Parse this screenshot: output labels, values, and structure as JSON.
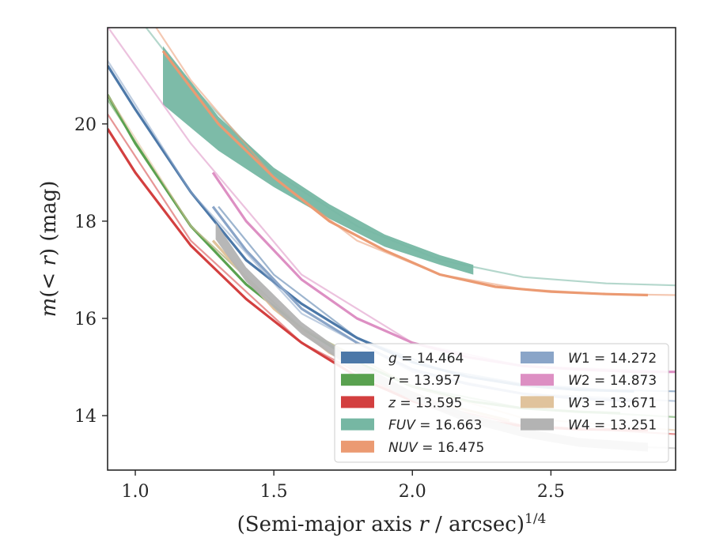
{
  "chart_data": {
    "type": "line",
    "xlabel": "(Semi-major axis r / arcsec)^1/4",
    "ylabel": "m(< r) (mag)",
    "xlim": [
      0.9,
      2.95
    ],
    "ylim": [
      21.98,
      12.88
    ],
    "y_inverted": true,
    "x_ticks": [
      1.0,
      1.5,
      2.0,
      2.5
    ],
    "x_tick_labels": [
      "1.0",
      "1.5",
      "2.0",
      "2.5"
    ],
    "y_ticks": [
      14,
      16,
      18,
      20
    ],
    "y_tick_labels": [
      "14",
      "16",
      "18",
      "20"
    ],
    "legend_position": "lower-right",
    "legend_columns": 2,
    "grid": false,
    "series": [
      {
        "name": "g",
        "label": "g = 14.464",
        "mag": 14.464,
        "color": "#4c78a8",
        "band": {
          "x": [
            0.9,
            1.0,
            1.2,
            1.4,
            1.6,
            1.8,
            2.0,
            2.2,
            2.4,
            2.6,
            2.8
          ],
          "y": [
            21.2,
            20.3,
            18.6,
            17.2,
            16.3,
            15.6,
            15.1,
            14.8,
            14.62,
            14.53,
            14.5
          ]
        },
        "model": {
          "x": [
            1.3,
            1.5,
            1.8,
            2.1,
            2.4,
            2.7,
            2.95
          ],
          "y": [
            18.3,
            16.9,
            15.6,
            14.95,
            14.65,
            14.53,
            14.5
          ]
        }
      },
      {
        "name": "r",
        "label": "r = 13.957",
        "mag": 13.957,
        "color": "#59a14f",
        "band": {
          "x": [
            0.9,
            1.0,
            1.2,
            1.4,
            1.6,
            1.8,
            2.0,
            2.2,
            2.4,
            2.6,
            2.75
          ],
          "y": [
            20.6,
            19.6,
            17.9,
            16.7,
            15.8,
            15.1,
            14.6,
            14.3,
            14.15,
            14.08,
            14.05
          ]
        },
        "model": {
          "x": [
            0.9,
            1.2,
            1.6,
            2.0,
            2.4,
            2.95
          ],
          "y": [
            20.5,
            17.9,
            15.8,
            14.6,
            14.15,
            13.97
          ]
        }
      },
      {
        "name": "z",
        "label": "z = 13.595",
        "mag": 13.595,
        "color": "#d33f3f",
        "band": {
          "x": [
            0.9,
            1.0,
            1.2,
            1.4,
            1.6,
            1.8,
            2.0,
            2.2,
            2.4,
            2.6,
            2.85
          ],
          "y": [
            19.9,
            19.0,
            17.5,
            16.4,
            15.5,
            14.8,
            14.3,
            13.95,
            13.78,
            13.72,
            13.7
          ]
        },
        "model": {
          "x": [
            0.9,
            1.2,
            1.6,
            2.0,
            2.4,
            2.95
          ],
          "y": [
            20.2,
            17.6,
            15.5,
            14.3,
            13.8,
            13.62
          ]
        }
      },
      {
        "name": "FUV",
        "label": "FUV = 16.663",
        "mag": 16.663,
        "color": "#76b7a3",
        "band": {
          "x": [
            1.1,
            1.3,
            1.5,
            1.7,
            1.9,
            2.1,
            2.22
          ],
          "y": [
            21.0,
            19.8,
            18.9,
            18.2,
            17.6,
            17.2,
            17.0
          ]
        },
        "band_width": [
          1.2,
          0.7,
          0.4,
          0.3,
          0.25,
          0.2,
          0.2
        ],
        "model": {
          "x": [
            0.9,
            1.2,
            1.5,
            1.8,
            2.1,
            2.4,
            2.7,
            2.95
          ],
          "y": [
            23.0,
            20.8,
            19.0,
            17.9,
            17.2,
            16.85,
            16.72,
            16.68
          ]
        }
      },
      {
        "name": "NUV",
        "label": "NUV = 16.475",
        "mag": 16.475,
        "color": "#eb9a72",
        "band": {
          "x": [
            1.1,
            1.3,
            1.5,
            1.7,
            1.9,
            2.1,
            2.3,
            2.5,
            2.7,
            2.85
          ],
          "y": [
            21.5,
            20.0,
            18.9,
            18.0,
            17.4,
            16.9,
            16.65,
            16.55,
            16.5,
            16.48
          ]
        },
        "model": {
          "x": [
            0.9,
            1.2,
            1.5,
            1.8,
            2.1,
            2.4,
            2.7,
            2.95
          ],
          "y": [
            23.5,
            20.9,
            18.9,
            17.6,
            16.9,
            16.6,
            16.5,
            16.48
          ]
        }
      },
      {
        "name": "W1",
        "label": "W1 = 14.272",
        "mag": 14.272,
        "color": "#8aa5c8",
        "band": {
          "x": [
            1.28,
            1.4,
            1.6,
            1.8,
            2.0,
            2.2,
            2.4,
            2.6,
            2.8
          ],
          "y": [
            18.3,
            17.4,
            16.2,
            15.5,
            14.95,
            14.65,
            14.45,
            14.35,
            14.3
          ]
        },
        "model": {
          "x": [
            0.9,
            1.2,
            1.6,
            2.0,
            2.4,
            2.95
          ],
          "y": [
            21.3,
            18.6,
            16.1,
            14.9,
            14.45,
            14.3
          ]
        }
      },
      {
        "name": "W2",
        "label": "W2 = 14.873",
        "mag": 14.873,
        "color": "#dd8fc3",
        "band": {
          "x": [
            1.28,
            1.4,
            1.6,
            1.8,
            2.0,
            2.2,
            2.4,
            2.6,
            2.8,
            2.95
          ],
          "y": [
            19.0,
            18.0,
            16.8,
            16.0,
            15.5,
            15.2,
            15.02,
            14.95,
            14.9,
            14.9
          ]
        },
        "model": {
          "x": [
            0.9,
            1.2,
            1.6,
            2.0,
            2.4,
            2.95
          ],
          "y": [
            22.0,
            19.6,
            16.9,
            15.5,
            15.02,
            14.9
          ]
        }
      },
      {
        "name": "W3",
        "label": "W3 = 13.671",
        "mag": 13.671,
        "color": "#e0c39c",
        "band": {
          "x": [
            1.28,
            1.5,
            1.7,
            1.9,
            2.1,
            2.35
          ],
          "y": [
            17.6,
            16.2,
            15.3,
            14.7,
            14.25,
            13.9
          ]
        },
        "model": {
          "x": [
            0.9,
            1.2,
            1.6,
            2.0,
            2.4,
            2.95
          ],
          "y": [
            20.6,
            17.9,
            15.8,
            14.6,
            13.95,
            13.7
          ]
        }
      },
      {
        "name": "W4",
        "label": "W4 = 13.251",
        "mag": 13.251,
        "color": "#b3b3b3",
        "band": {
          "x": [
            1.29,
            1.4,
            1.6,
            1.8,
            2.0,
            2.2,
            2.4,
            2.6,
            2.85
          ],
          "y": [
            17.8,
            16.9,
            15.8,
            15.0,
            14.4,
            13.95,
            13.65,
            13.45,
            13.35
          ]
        },
        "band_width": [
          0.35,
          0.3,
          0.25,
          0.2,
          0.18,
          0.18,
          0.18,
          0.18,
          0.18
        ],
        "model": {
          "x": [
            2.85,
            2.95
          ],
          "y": [
            13.35,
            13.33
          ]
        }
      }
    ]
  }
}
